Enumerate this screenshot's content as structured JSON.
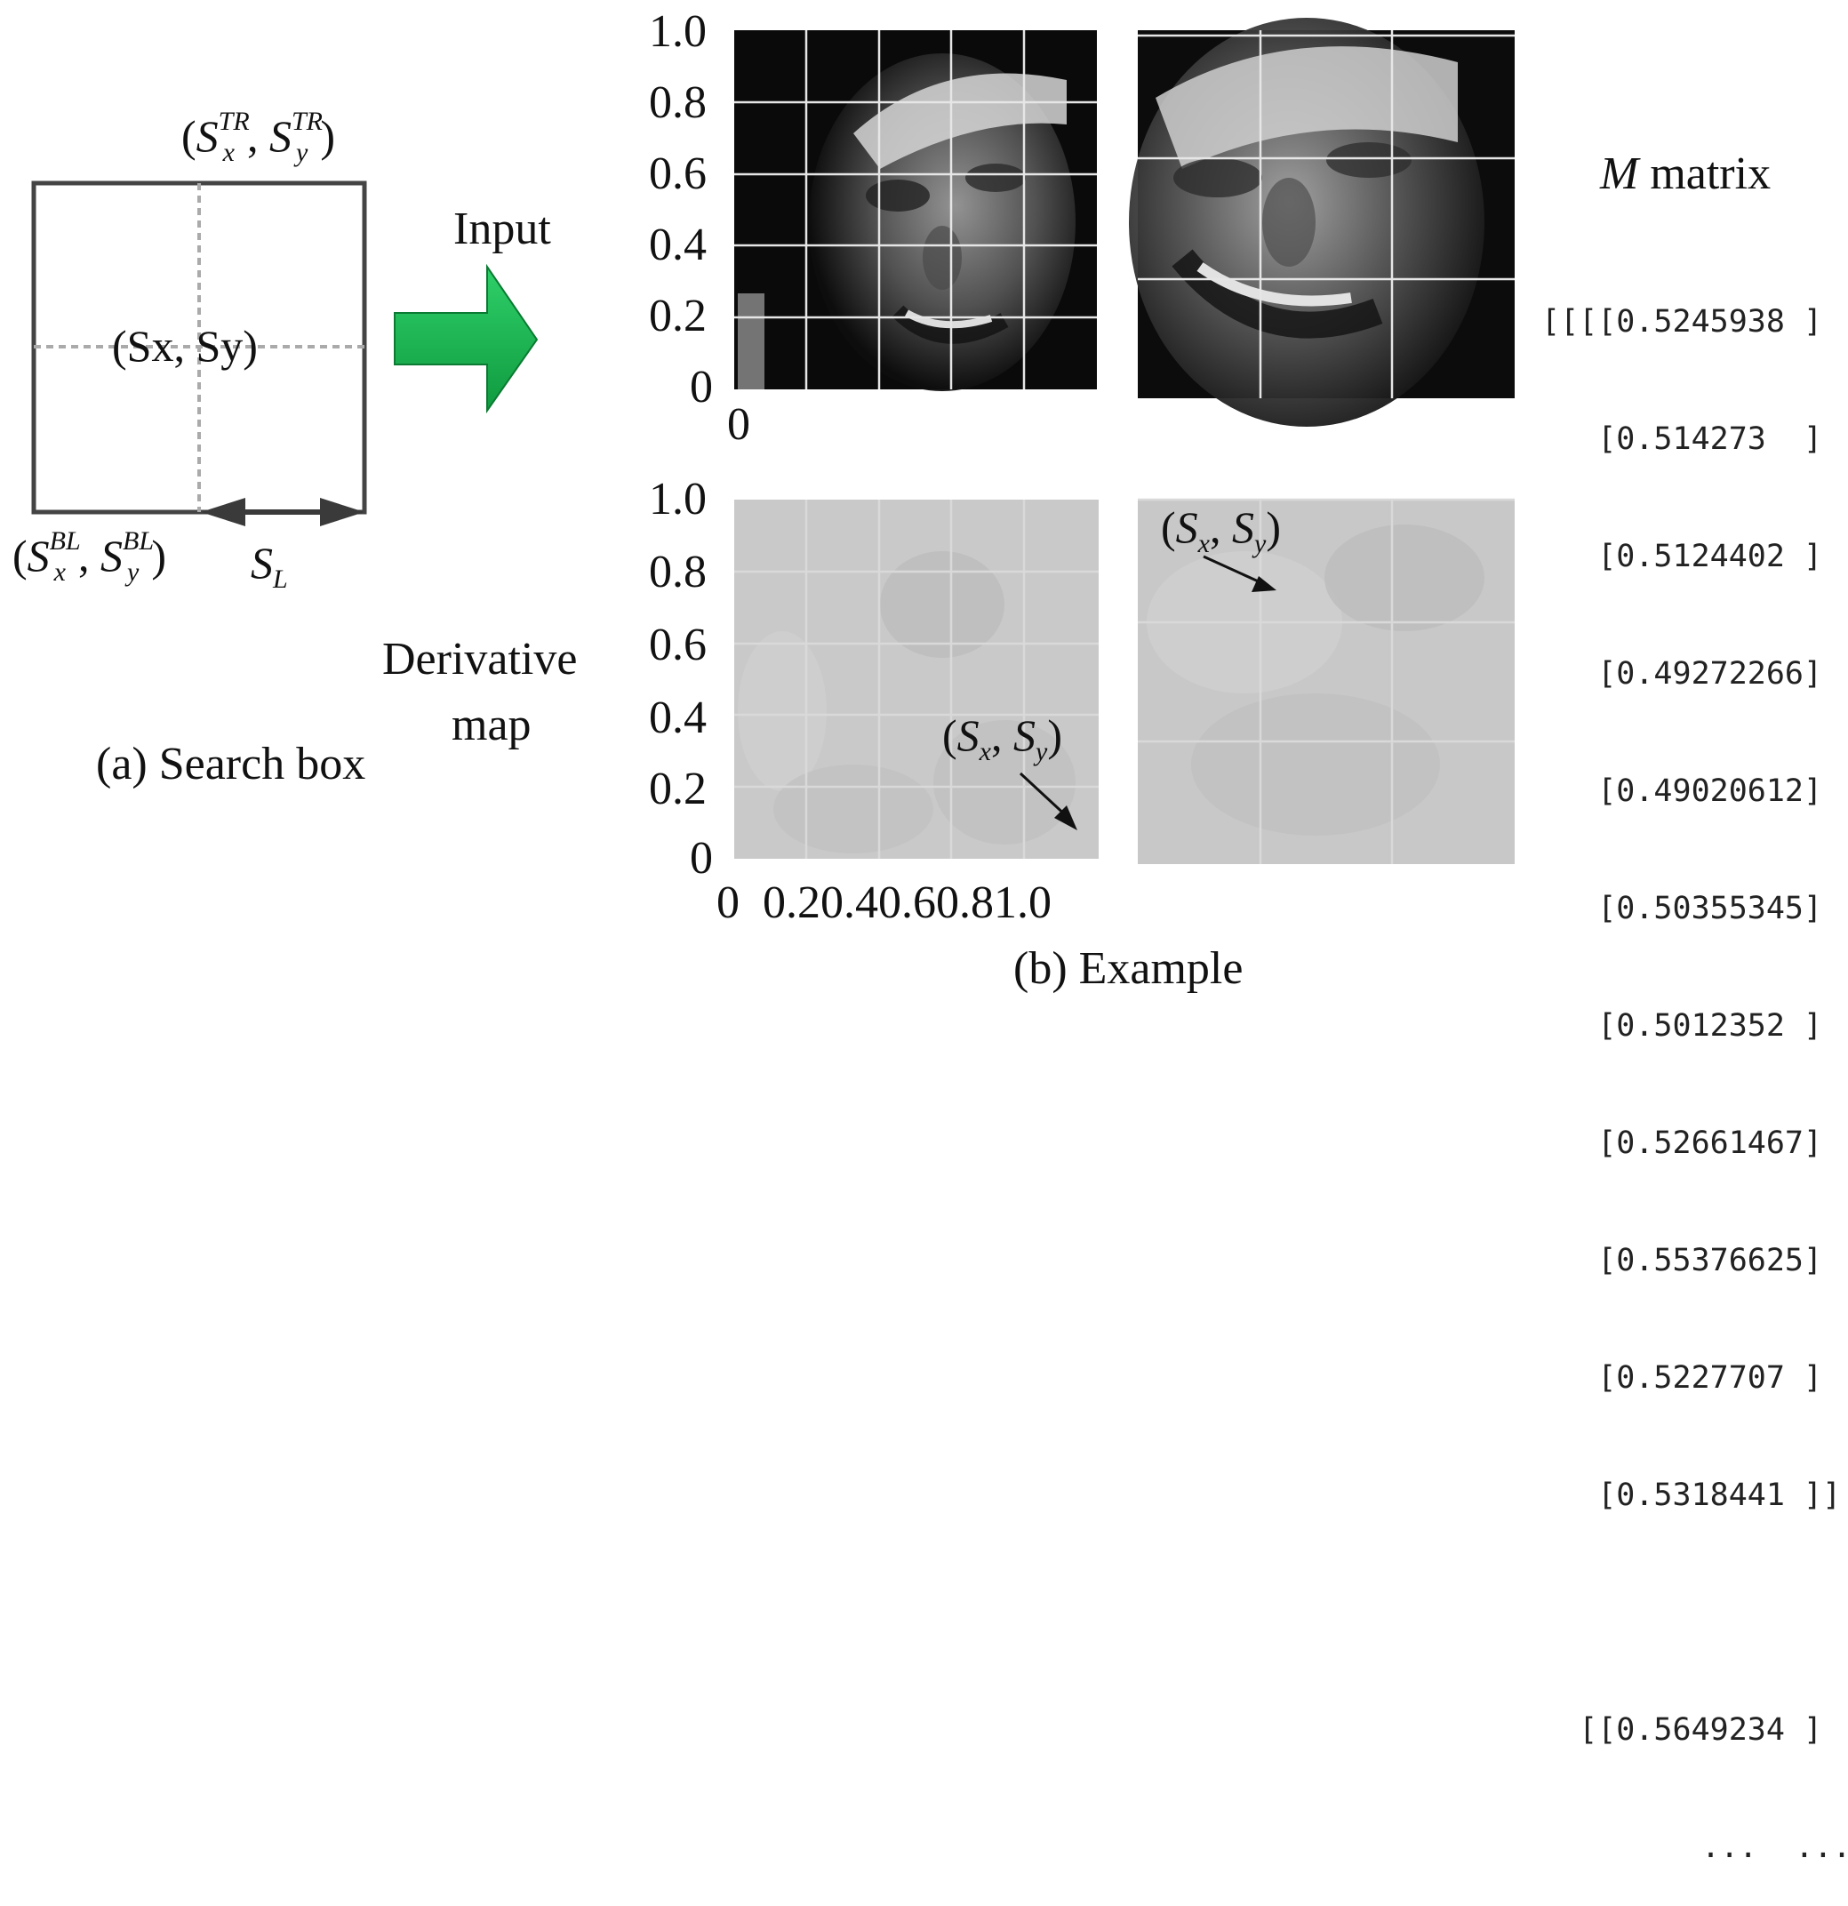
{
  "search_box": {
    "top_right_label": {
      "open": "(",
      "s1": "S",
      "sup1": "TR",
      "sub1": "x",
      "sep": ", ",
      "s2": "S",
      "sup2": "TR",
      "sub2": "y",
      "close": ")"
    },
    "center_label": "(Sx, Sy)",
    "bottom_left_label": {
      "open": "(",
      "s1": "S",
      "sup1": "BL",
      "sub1": "x",
      "sep": ", ",
      "s2": "S",
      "sup2": "BL",
      "sub2": "y",
      "close": ")"
    },
    "length_label": {
      "s": "S",
      "sub": "L"
    },
    "caption": "(a) Search box"
  },
  "arrow_label": "Input",
  "derivative_label": {
    "line1": "Derivative",
    "line2": "map"
  },
  "axes": {
    "y_ticks": [
      "1.0",
      "0.8",
      "0.6",
      "0.4",
      "0.2",
      "0"
    ],
    "top_x_tick": "0",
    "bottom_x_ticks": "0  0.20.40.60.81.0"
  },
  "point_labels": {
    "a": {
      "open": "(",
      "s1": "S",
      "sub1": "x",
      "sep": ", ",
      "s2": "S",
      "sub2": "y",
      "close": ")"
    },
    "b": {
      "open": "(",
      "s1": "S",
      "sub1": "x",
      "sep": ", ",
      "s2": "S",
      "sub2": "y",
      "close": ")"
    }
  },
  "matrix": {
    "title_symbol": "M",
    "title_rest": " matrix",
    "rows": [
      "[[[[0.5245938 ]",
      "   [0.514273  ]",
      "   [0.5124402 ]",
      "   [0.49272266]",
      "   [0.49020612]",
      "   [0.50355345]",
      "   [0.5012352 ]",
      "   [0.52661467]",
      "   [0.55376625]",
      "   [0.5227707 ]",
      "   [0.5318441 ]]"
    ],
    "next_row": "  [[0.5649234 ]",
    "ellipsis": "...  ..."
  },
  "caption_b": "(b) Example"
}
